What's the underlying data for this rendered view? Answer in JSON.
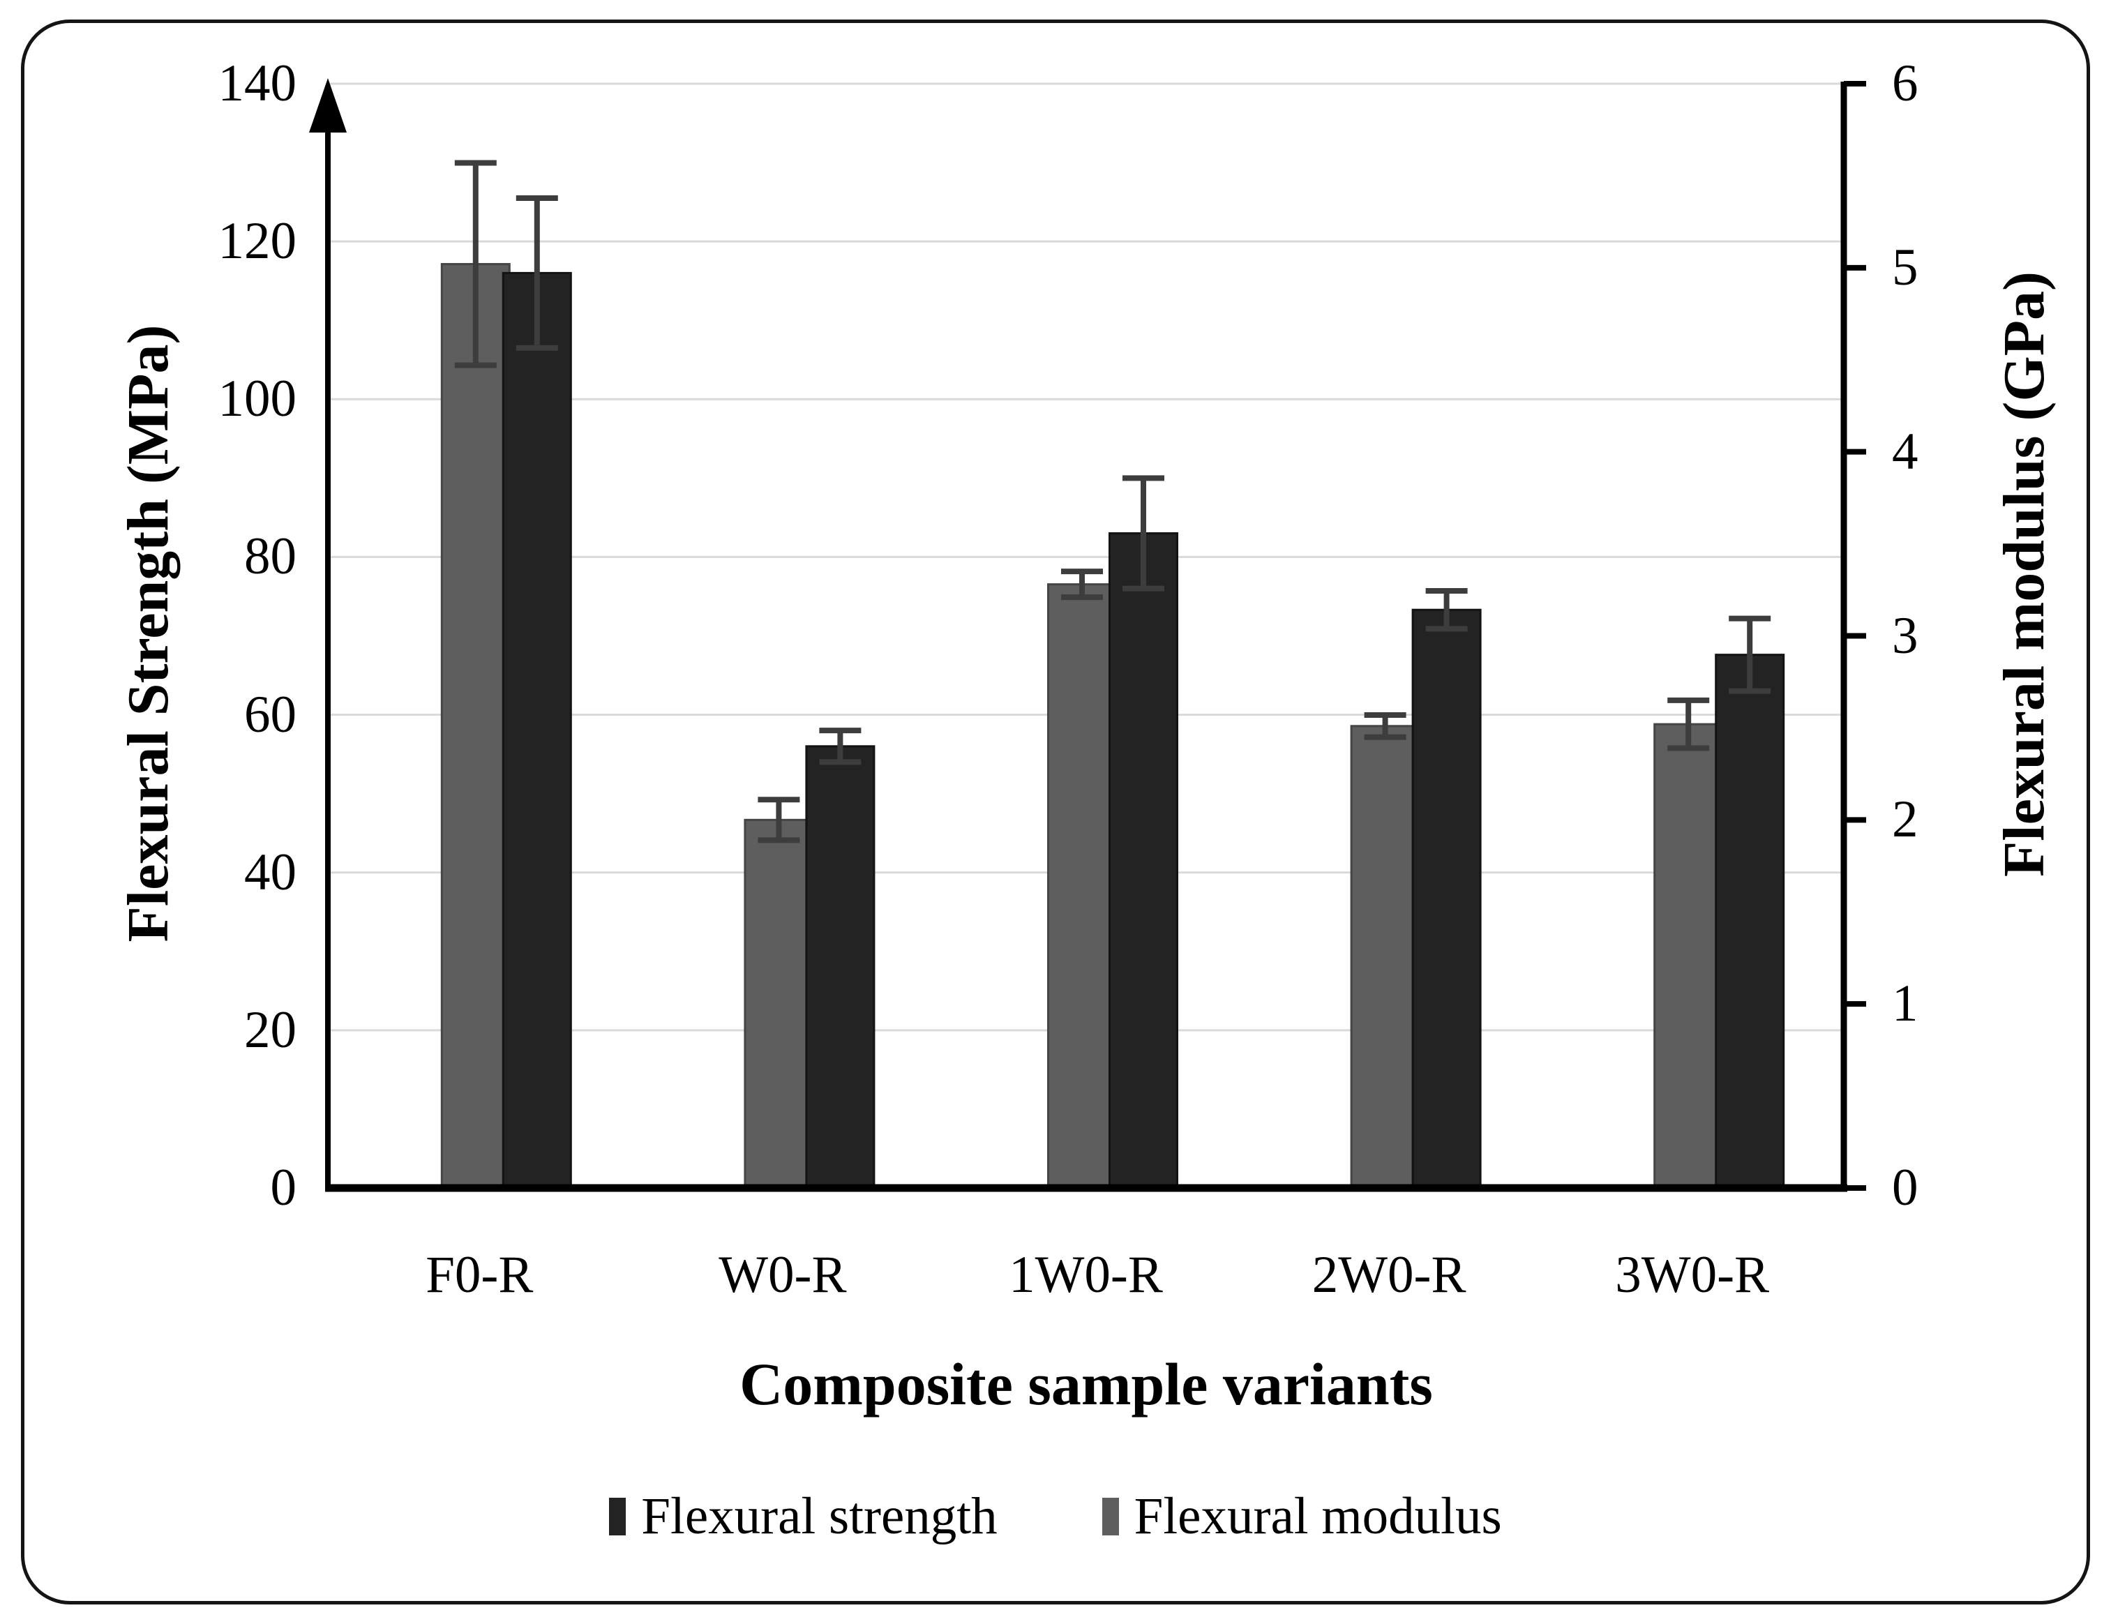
{
  "chart_data": {
    "type": "bar",
    "title": "",
    "xlabel": "Composite sample variants",
    "categories": [
      "F0-R",
      "W0-R",
      "1W0-R",
      "2W0-R",
      "3W0-R"
    ],
    "left_axis": {
      "label": "Flexural Strength (MPa)",
      "min": 0,
      "max": 140,
      "tick_step": 20,
      "ticks": [
        "0",
        "20",
        "40",
        "60",
        "80",
        "100",
        "120",
        "140"
      ]
    },
    "right_axis": {
      "label": "Flexural modulus (GPa)",
      "min": 0,
      "max": 6,
      "tick_step": 1,
      "ticks": [
        "0",
        "1",
        "2",
        "3",
        "4",
        "5",
        "6"
      ]
    },
    "series": [
      {
        "name": "Flexural modulus",
        "axis": "right",
        "unit": "GPa",
        "color": "#5e5e5e",
        "border_color": "#454545",
        "values": [
          5.02,
          2.0,
          3.28,
          2.51,
          2.52
        ],
        "errors": [
          0.55,
          0.11,
          0.07,
          0.06,
          0.13
        ]
      },
      {
        "name": "Flexural strength",
        "axis": "left",
        "unit": "MPa",
        "color": "#232323",
        "border_color": "#131313",
        "values": [
          116,
          56,
          83,
          73.3,
          67.6
        ],
        "errors": [
          9.5,
          2.0,
          7.0,
          2.4,
          4.6
        ]
      }
    ],
    "legend": {
      "position": "bottom",
      "items": [
        {
          "label": "Flexural strength",
          "swatch_color": "#232323"
        },
        {
          "label": "Flexural modulus",
          "swatch_color": "#5e5e5e"
        }
      ]
    },
    "grid": {
      "horizontal": true,
      "color": "#d9d9d9"
    },
    "error_bar_color": "#3d3d3d",
    "axis_color": "#000000"
  }
}
